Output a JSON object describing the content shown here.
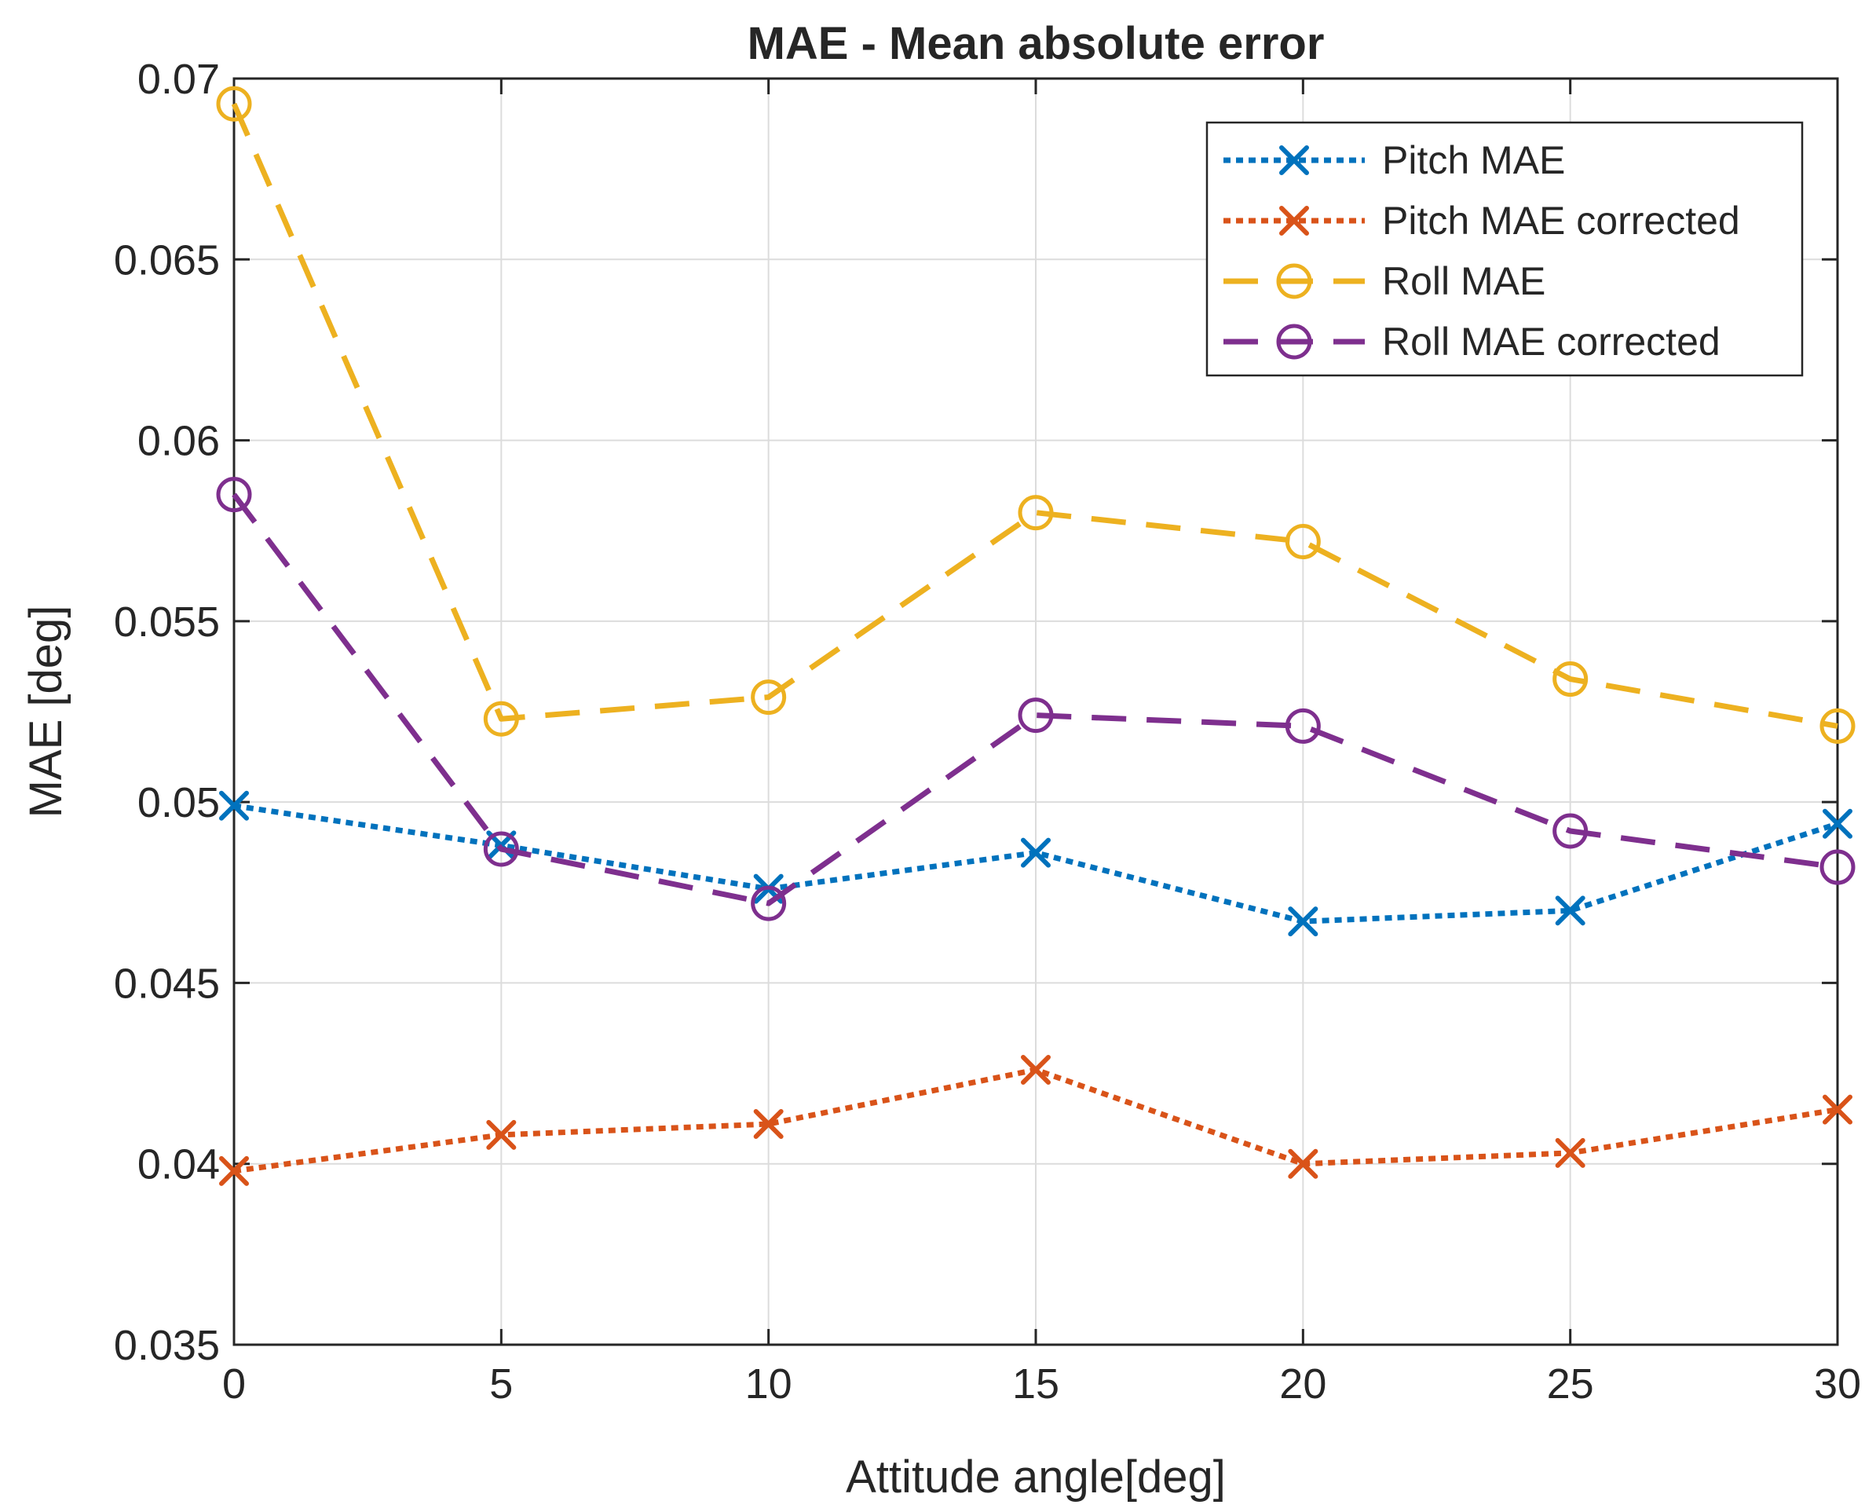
{
  "chart_data": {
    "type": "line",
    "title": "MAE - Mean absolute error",
    "xlabel": "Attitude angle[deg]",
    "ylabel": "MAE [deg]",
    "x": [
      0,
      5,
      10,
      15,
      20,
      25,
      30
    ],
    "xlim": [
      0,
      30
    ],
    "ylim": [
      0.035,
      0.07
    ],
    "xticks": [
      0,
      5,
      10,
      15,
      20,
      25,
      30
    ],
    "xtick_labels": [
      "0",
      "5",
      "10",
      "15",
      "20",
      "25",
      "30"
    ],
    "yticks": [
      0.035,
      0.04,
      0.045,
      0.05,
      0.055,
      0.06,
      0.065,
      0.07
    ],
    "ytick_labels": [
      "0.035",
      "0.04",
      "0.045",
      "0.05",
      "0.055",
      "0.06",
      "0.065",
      "0.07"
    ],
    "grid": true,
    "legend_position": "top-right",
    "series": [
      {
        "name": "Pitch MAE",
        "color": "#0072BD",
        "line_style": "dotted",
        "marker": "x",
        "values": [
          0.0499,
          0.0488,
          0.0476,
          0.0486,
          0.0467,
          0.047,
          0.0494
        ]
      },
      {
        "name": "Pitch MAE corrected",
        "color": "#D95319",
        "line_style": "dotted",
        "marker": "x",
        "values": [
          0.0398,
          0.0408,
          0.0411,
          0.0426,
          0.04,
          0.0403,
          0.0415
        ]
      },
      {
        "name": "Roll MAE",
        "color": "#EDB120",
        "line_style": "dashed",
        "marker": "o",
        "values": [
          0.0693,
          0.0523,
          0.0529,
          0.058,
          0.0572,
          0.0534,
          0.0521
        ]
      },
      {
        "name": "Roll MAE corrected",
        "color": "#7E2F8E",
        "line_style": "dashed",
        "marker": "o",
        "values": [
          0.0585,
          0.0487,
          0.0472,
          0.0524,
          0.0521,
          0.0492,
          0.0482
        ]
      }
    ]
  }
}
